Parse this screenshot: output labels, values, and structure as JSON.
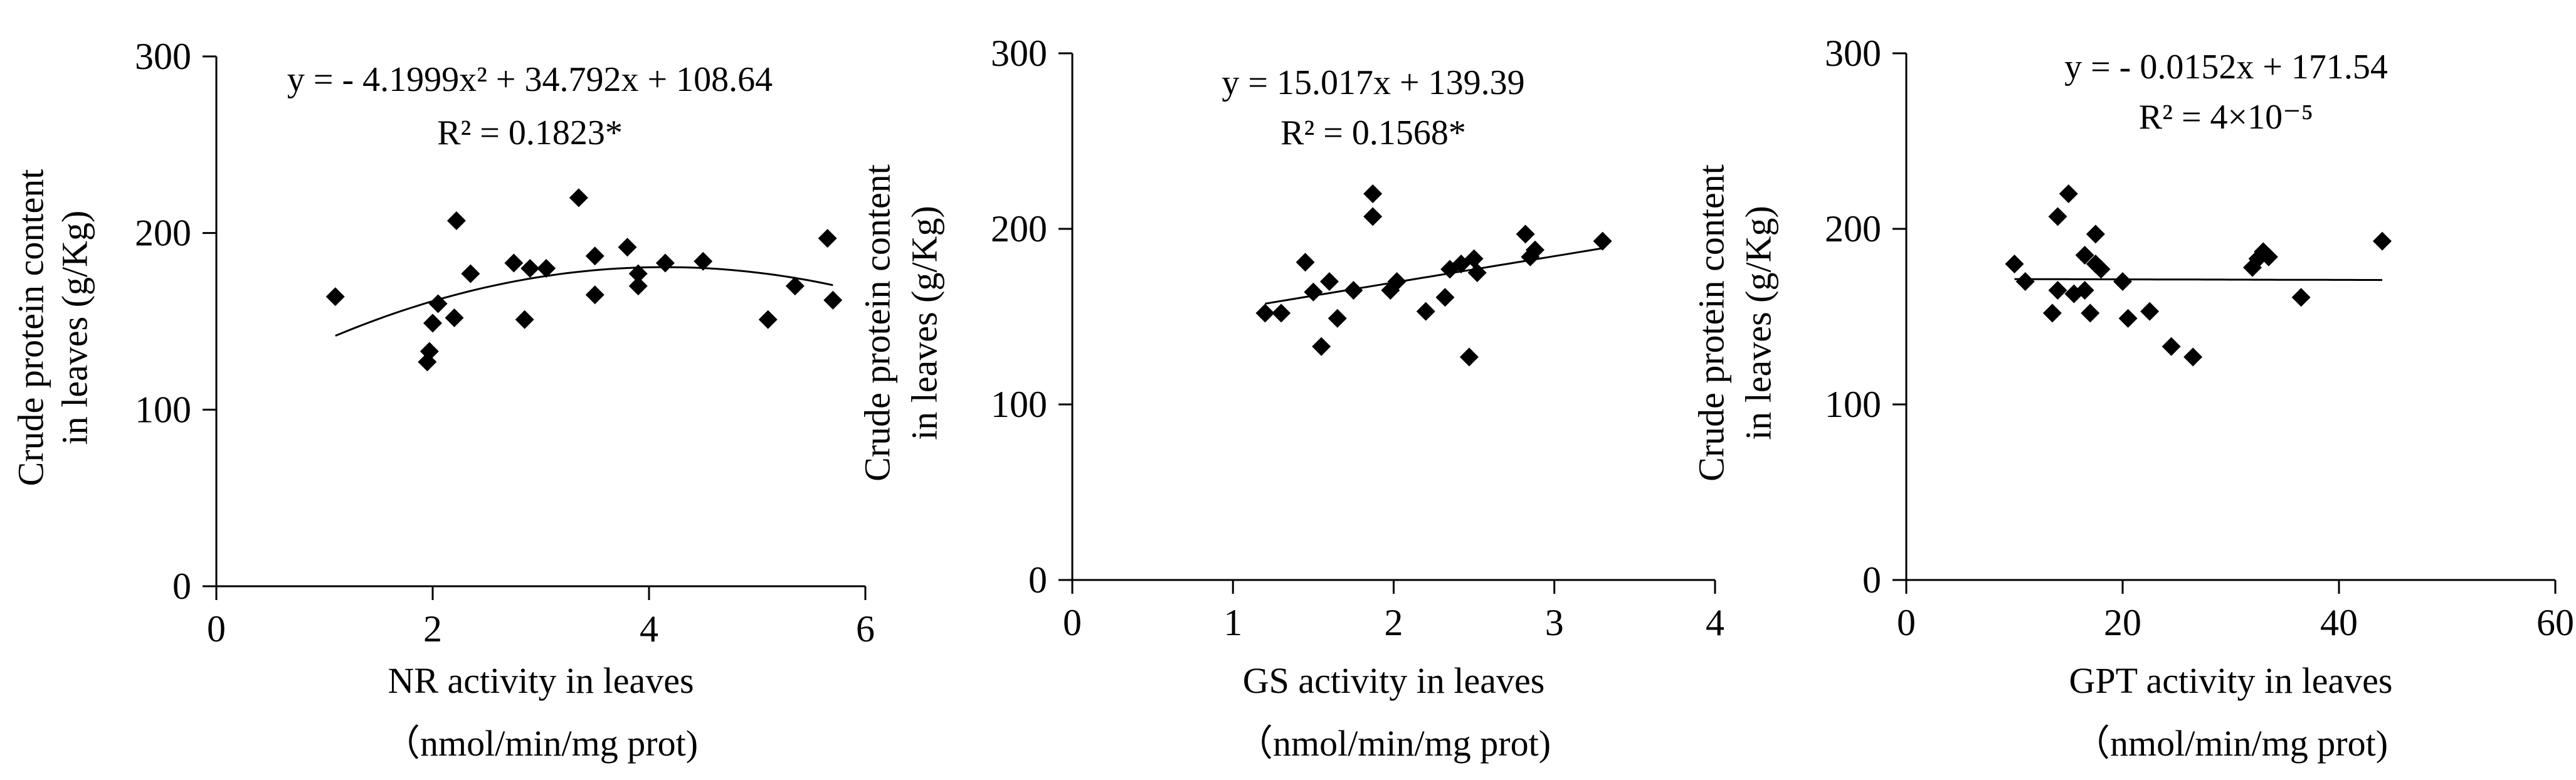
{
  "chart_data": [
    {
      "type": "scatter",
      "title": "",
      "xlabel": [
        "NR activity  in leaves",
        "（nmol/min/mg  prot)"
      ],
      "ylabel": [
        "Crude protein content",
        "in leaves (g/Kg)"
      ],
      "xlim": [
        0,
        6
      ],
      "ylim": [
        0,
        300
      ],
      "xticks": [
        "0",
        "2",
        "4",
        "6"
      ],
      "yticks": [
        "0",
        "100",
        "200",
        "300"
      ],
      "equation": "y =  - 4.1999x² + 34.792x + 108.64",
      "r2": "R² = 0.1823*",
      "trendline": {
        "kind": "poly2",
        "coef": [
          -4.1999,
          34.792,
          108.64
        ],
        "x_range": [
          1.1,
          5.7
        ]
      },
      "points": [
        {
          "x": 1.1,
          "y": 164
        },
        {
          "x": 1.95,
          "y": 127
        },
        {
          "x": 1.97,
          "y": 133
        },
        {
          "x": 2.0,
          "y": 149
        },
        {
          "x": 2.05,
          "y": 160
        },
        {
          "x": 2.2,
          "y": 152
        },
        {
          "x": 2.22,
          "y": 207
        },
        {
          "x": 2.35,
          "y": 177
        },
        {
          "x": 2.75,
          "y": 183
        },
        {
          "x": 2.85,
          "y": 151
        },
        {
          "x": 2.9,
          "y": 180
        },
        {
          "x": 3.05,
          "y": 180
        },
        {
          "x": 3.35,
          "y": 220
        },
        {
          "x": 3.5,
          "y": 187
        },
        {
          "x": 3.5,
          "y": 165
        },
        {
          "x": 3.8,
          "y": 192
        },
        {
          "x": 3.9,
          "y": 177
        },
        {
          "x": 3.9,
          "y": 170
        },
        {
          "x": 4.15,
          "y": 183
        },
        {
          "x": 4.5,
          "y": 184
        },
        {
          "x": 5.1,
          "y": 151
        },
        {
          "x": 5.35,
          "y": 170
        },
        {
          "x": 5.65,
          "y": 197
        },
        {
          "x": 5.7,
          "y": 162
        }
      ]
    },
    {
      "type": "scatter",
      "title": "",
      "xlabel": [
        "GS activity  in leaves",
        "（nmol/min/mg  prot)"
      ],
      "ylabel": [
        "Crude  protein content",
        "in leaves (g/Kg)"
      ],
      "xlim": [
        0,
        4
      ],
      "ylim": [
        0,
        300
      ],
      "xticks": [
        "0",
        "1",
        "2",
        "3",
        "4"
      ],
      "yticks": [
        "0",
        "100",
        "200",
        "300"
      ],
      "equation": "y = 15.017x + 139.39",
      "r2": "R² = 0.1568*",
      "trendline": {
        "kind": "linear",
        "coef": [
          0,
          15.017,
          139.39
        ],
        "x_range": [
          1.2,
          3.3
        ]
      },
      "points": [
        {
          "x": 1.2,
          "y": 152
        },
        {
          "x": 1.3,
          "y": 152
        },
        {
          "x": 1.45,
          "y": 181
        },
        {
          "x": 1.5,
          "y": 164
        },
        {
          "x": 1.55,
          "y": 133
        },
        {
          "x": 1.6,
          "y": 170
        },
        {
          "x": 1.65,
          "y": 149
        },
        {
          "x": 1.75,
          "y": 165
        },
        {
          "x": 1.87,
          "y": 220
        },
        {
          "x": 1.87,
          "y": 207
        },
        {
          "x": 1.98,
          "y": 165
        },
        {
          "x": 2.02,
          "y": 170
        },
        {
          "x": 2.2,
          "y": 153
        },
        {
          "x": 2.32,
          "y": 161
        },
        {
          "x": 2.35,
          "y": 177
        },
        {
          "x": 2.42,
          "y": 180
        },
        {
          "x": 2.47,
          "y": 127
        },
        {
          "x": 2.5,
          "y": 183
        },
        {
          "x": 2.52,
          "y": 175
        },
        {
          "x": 2.82,
          "y": 197
        },
        {
          "x": 2.85,
          "y": 184
        },
        {
          "x": 2.88,
          "y": 188
        },
        {
          "x": 3.3,
          "y": 193
        }
      ]
    },
    {
      "type": "scatter",
      "title": "",
      "xlabel": [
        "GPT activity  in leaves",
        "（nmol/min/mg  prot)"
      ],
      "ylabel": [
        "Crude protein content",
        "in leaves (g/Kg)"
      ],
      "xlim": [
        0,
        60
      ],
      "ylim": [
        0,
        300
      ],
      "xticks": [
        "0",
        "20",
        "40",
        "60"
      ],
      "yticks": [
        "0",
        "100",
        "200",
        "300"
      ],
      "equation": "y =  - 0.0152x + 171.54",
      "r2": "R² = 4×10⁻⁵",
      "trendline": {
        "kind": "linear",
        "coef": [
          0,
          -0.0152,
          171.54
        ],
        "x_range": [
          10,
          44
        ]
      },
      "points": [
        {
          "x": 10,
          "y": 180
        },
        {
          "x": 11,
          "y": 170
        },
        {
          "x": 13.5,
          "y": 152
        },
        {
          "x": 14,
          "y": 207
        },
        {
          "x": 14,
          "y": 165
        },
        {
          "x": 15,
          "y": 220
        },
        {
          "x": 15.5,
          "y": 163
        },
        {
          "x": 16.5,
          "y": 165
        },
        {
          "x": 16.5,
          "y": 185
        },
        {
          "x": 17,
          "y": 152
        },
        {
          "x": 17.5,
          "y": 197
        },
        {
          "x": 17.5,
          "y": 180
        },
        {
          "x": 18,
          "y": 177
        },
        {
          "x": 20,
          "y": 170
        },
        {
          "x": 20.5,
          "y": 149
        },
        {
          "x": 22.5,
          "y": 153
        },
        {
          "x": 24.5,
          "y": 133
        },
        {
          "x": 26.5,
          "y": 127
        },
        {
          "x": 32,
          "y": 178
        },
        {
          "x": 32.5,
          "y": 183
        },
        {
          "x": 33,
          "y": 187
        },
        {
          "x": 33.5,
          "y": 184
        },
        {
          "x": 36.5,
          "y": 161
        },
        {
          "x": 44,
          "y": 193
        }
      ]
    }
  ]
}
